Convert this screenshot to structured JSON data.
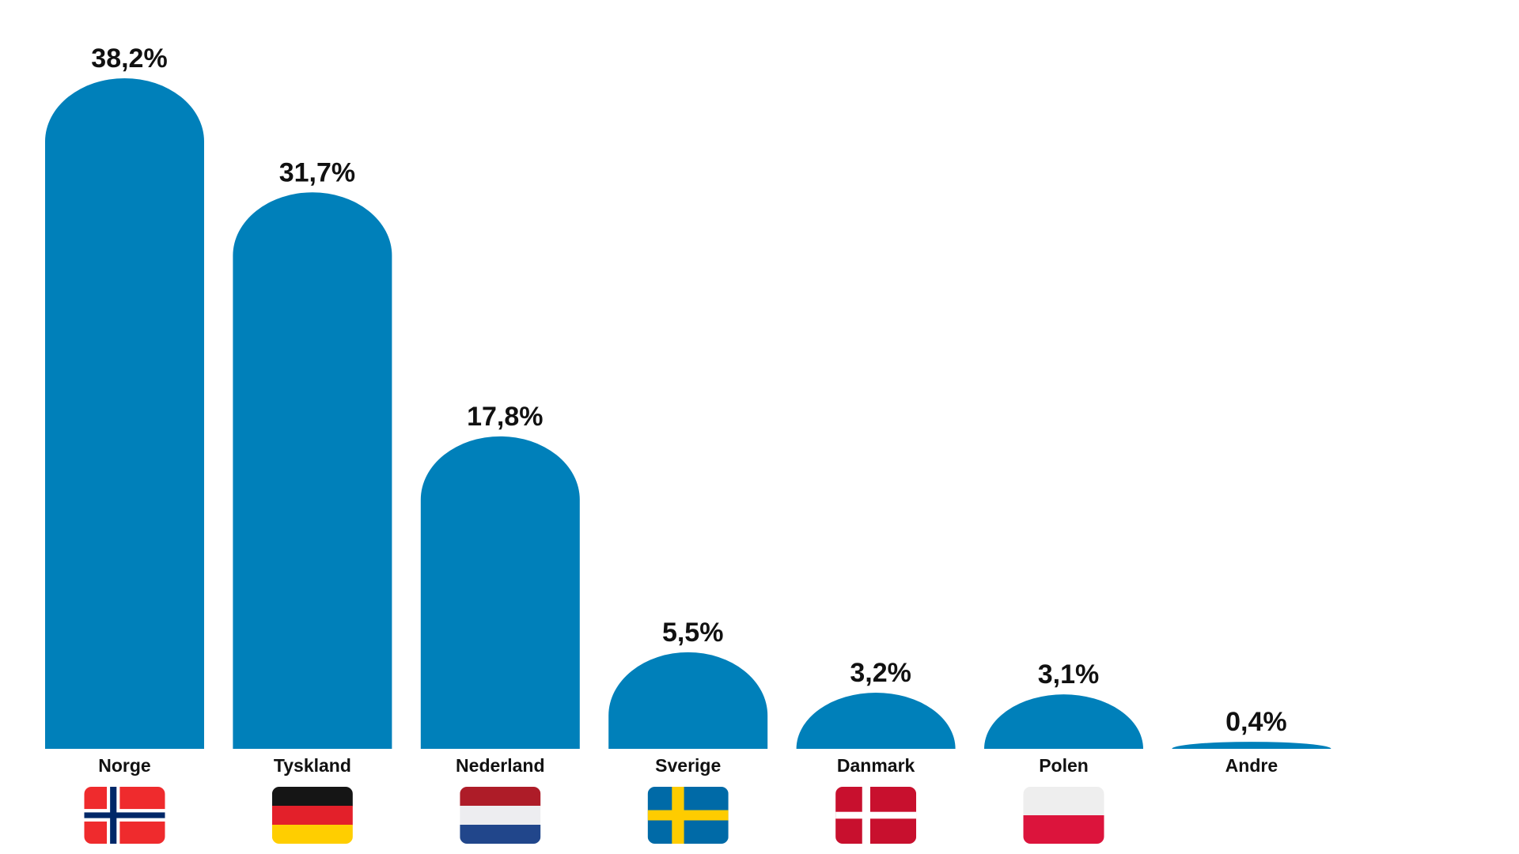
{
  "chart_data": {
    "type": "bar",
    "categories": [
      "Norge",
      "Tyskland",
      "Nederland",
      "Sverige",
      "Danmark",
      "Polen",
      "Andre"
    ],
    "values": [
      38.2,
      31.7,
      17.8,
      5.5,
      3.2,
      3.1,
      0.4
    ],
    "value_labels": [
      "38,2%",
      "31,7%",
      "17,8%",
      "5,5%",
      "3,2%",
      "3,1%",
      "0,4%"
    ],
    "flag_icons": [
      "norway-flag",
      "germany-flag",
      "netherlands-flag",
      "sweden-flag",
      "denmark-flag",
      "poland-flag",
      null
    ],
    "title": "",
    "xlabel": "",
    "ylabel": "",
    "grid": false,
    "bar_color": "#0080BA"
  }
}
